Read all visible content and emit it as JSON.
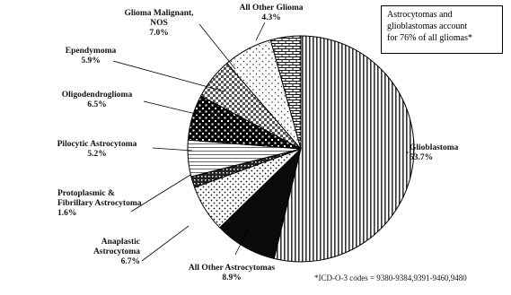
{
  "chart_data": {
    "type": "pie",
    "title": "",
    "slices": [
      {
        "label": "Glioblastoma",
        "value": 53.7,
        "pct_label": "53.7%",
        "pattern": "vertical-stripes"
      },
      {
        "label": "All Other Astrocytomas",
        "value": 8.9,
        "pct_label": "8.9%",
        "pattern": "solid-black"
      },
      {
        "label": "Anaplastic Astrocytoma",
        "value": 6.7,
        "pct_label": "6.7%",
        "pattern": "dots"
      },
      {
        "label": "Protoplasmic & Fibrillary Astrocytoma",
        "value": 1.6,
        "pct_label": "1.6%",
        "pattern": "crosshatch-dark"
      },
      {
        "label": "Pilocytic Astrocytoma",
        "value": 5.2,
        "pct_label": "5.2%",
        "pattern": "horizontal-lines"
      },
      {
        "label": "Oligodendroglioma",
        "value": 6.5,
        "pct_label": "6.5%",
        "pattern": "black-checker"
      },
      {
        "label": "Ependymoma",
        "value": 5.9,
        "pct_label": "5.9%",
        "pattern": "grey-checker"
      },
      {
        "label": "Glioma Malignant, NOS",
        "value": 7.0,
        "pct_label": "7.0%",
        "pattern": "sparse-dots"
      },
      {
        "label": "All Other Glioma",
        "value": 4.3,
        "pct_label": "4.3%",
        "pattern": "brick"
      }
    ],
    "legend": "none",
    "annotation": [
      "Astrocytomas and",
      "glioblastomas account",
      "for 76% of all gliomas*"
    ],
    "footnote": "*ICD-O-3 codes = 9380-9384,9391-9460,9480"
  },
  "labels": [
    {
      "lines": [
        "Glioblastoma",
        "53.7%"
      ]
    },
    {
      "lines": [
        "All Other Astrocytomas",
        "8.9%"
      ]
    },
    {
      "lines": [
        "Anaplastic",
        "Astrocytoma",
        "6.7%"
      ]
    },
    {
      "lines": [
        "Protoplasmic &",
        "Fibrillary Astrocytoma",
        "1.6%"
      ]
    },
    {
      "lines": [
        "Pilocytic Astrocytoma",
        "5.2%"
      ]
    },
    {
      "lines": [
        "Oligodendroglioma",
        "6.5%"
      ]
    },
    {
      "lines": [
        "Ependymoma",
        "5.9%"
      ]
    },
    {
      "lines": [
        "Glioma Malignant,",
        "NOS",
        "7.0%"
      ]
    },
    {
      "lines": [
        "All Other Glioma",
        "4.3%"
      ]
    }
  ]
}
